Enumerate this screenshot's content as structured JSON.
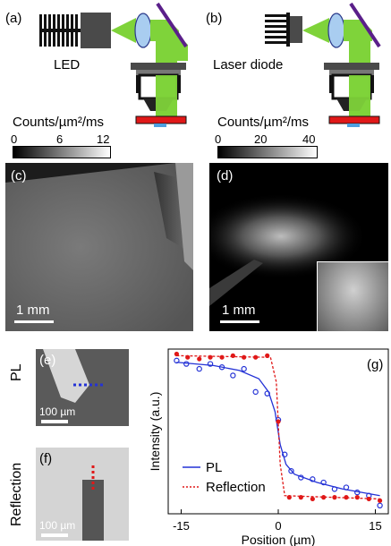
{
  "panel_labels": {
    "a": "(a)",
    "b": "(b)",
    "c": "(c)",
    "d": "(d)",
    "e": "(e)",
    "f": "(f)",
    "g": "(g)"
  },
  "schematic": {
    "led_label": "LED",
    "laser_label": "Laser diode"
  },
  "colorbar_left": {
    "title": "Counts/µm²/ms",
    "ticks": [
      "0",
      "6",
      "12"
    ]
  },
  "colorbar_right": {
    "title": "Counts/µm²/ms",
    "ticks": [
      "0",
      "20",
      "40"
    ]
  },
  "scalebars": {
    "c": "1 mm",
    "d": "1 mm",
    "e": "100 µm",
    "f": "100 µm"
  },
  "row_labels": {
    "pl": "PL",
    "reflection": "Reflection"
  },
  "colors": {
    "pl": "#2432d6",
    "reflection": "#e01818",
    "green_beam": "#7fd33a",
    "stage_red": "#e01818",
    "mirror": "#5a1f8a",
    "lens": "#a9cdf0"
  },
  "chart_data": {
    "type": "line",
    "title": "",
    "xlabel": "Position (µm)",
    "ylabel": "Intensity (a.u.)",
    "xlim": [
      -17,
      17
    ],
    "ylim": [
      0,
      1
    ],
    "xticks": [
      "-15",
      "0",
      "15"
    ],
    "legend": {
      "placement": "bottom-left",
      "entries": [
        "PL",
        "Reflection"
      ]
    },
    "series": [
      {
        "name": "PL",
        "style": "solid line + open circles",
        "color": "#2432d6",
        "points": [
          [
            -15.7,
            0.93
          ],
          [
            -14.2,
            0.91
          ],
          [
            -12.2,
            0.88
          ],
          [
            -10.5,
            0.91
          ],
          [
            -8.7,
            0.89
          ],
          [
            -7.0,
            0.84
          ],
          [
            -5.3,
            0.88
          ],
          [
            -3.5,
            0.74
          ],
          [
            -1.7,
            0.73
          ],
          [
            0.0,
            0.57
          ],
          [
            1.0,
            0.36
          ],
          [
            2.0,
            0.26
          ],
          [
            3.5,
            0.22
          ],
          [
            5.3,
            0.21
          ],
          [
            7.0,
            0.19
          ],
          [
            8.7,
            0.15
          ],
          [
            10.5,
            0.16
          ],
          [
            12.2,
            0.13
          ],
          [
            14.0,
            0.11
          ],
          [
            15.7,
            0.05
          ]
        ],
        "fit": [
          [
            -15.7,
            0.92
          ],
          [
            -10,
            0.9
          ],
          [
            -6,
            0.87
          ],
          [
            -3,
            0.82
          ],
          [
            -1.5,
            0.74
          ],
          [
            -0.5,
            0.62
          ],
          [
            0.3,
            0.42
          ],
          [
            1.2,
            0.3
          ],
          [
            2.5,
            0.24
          ],
          [
            6,
            0.19
          ],
          [
            10,
            0.15
          ],
          [
            15.7,
            0.11
          ]
        ]
      },
      {
        "name": "Reflection",
        "style": "dotted line + filled circles",
        "color": "#e01818",
        "points": [
          [
            -15.7,
            0.97
          ],
          [
            -14.0,
            0.95
          ],
          [
            -12.2,
            0.94
          ],
          [
            -10.5,
            0.95
          ],
          [
            -8.7,
            0.95
          ],
          [
            -7.0,
            0.96
          ],
          [
            -5.3,
            0.95
          ],
          [
            -3.5,
            0.95
          ],
          [
            -1.7,
            0.96
          ],
          [
            0.0,
            0.56
          ],
          [
            1.7,
            0.1
          ],
          [
            3.5,
            0.1
          ],
          [
            5.3,
            0.09
          ],
          [
            7.0,
            0.1
          ],
          [
            8.7,
            0.1
          ],
          [
            10.5,
            0.1
          ],
          [
            12.2,
            0.1
          ],
          [
            14.0,
            0.09
          ],
          [
            15.7,
            0.08
          ]
        ],
        "fit": [
          [
            -15.7,
            0.96
          ],
          [
            -1.2,
            0.95
          ],
          [
            -0.3,
            0.8
          ],
          [
            0.3,
            0.3
          ],
          [
            1.0,
            0.11
          ],
          [
            15.7,
            0.09
          ]
        ]
      }
    ]
  }
}
